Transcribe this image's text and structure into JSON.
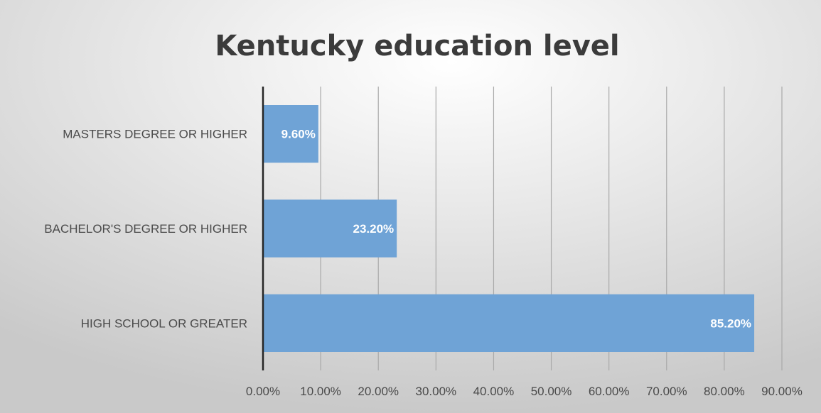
{
  "chart_data": {
    "type": "bar",
    "orientation": "horizontal",
    "title": "Kentucky education level",
    "categories": [
      "MASTERS DEGREE OR HIGHER",
      "BACHELOR'S DEGREE OR HIGHER",
      "HIGH SCHOOL OR GREATER"
    ],
    "values": [
      9.6,
      23.2,
      85.2
    ],
    "data_labels": [
      "9.60%",
      "23.20%",
      "85.20%"
    ],
    "xlim": [
      0,
      90
    ],
    "x_ticks": [
      0,
      10,
      20,
      30,
      40,
      50,
      60,
      70,
      80,
      90
    ],
    "x_tick_labels": [
      "0.00%",
      "10.00%",
      "20.00%",
      "30.00%",
      "40.00%",
      "50.00%",
      "60.00%",
      "70.00%",
      "80.00%",
      "90.00%"
    ],
    "grid": true,
    "legend": "none",
    "bar_color": "#6fa3d6",
    "background_gradient": [
      "#ffffff",
      "#c8c8c8"
    ]
  }
}
